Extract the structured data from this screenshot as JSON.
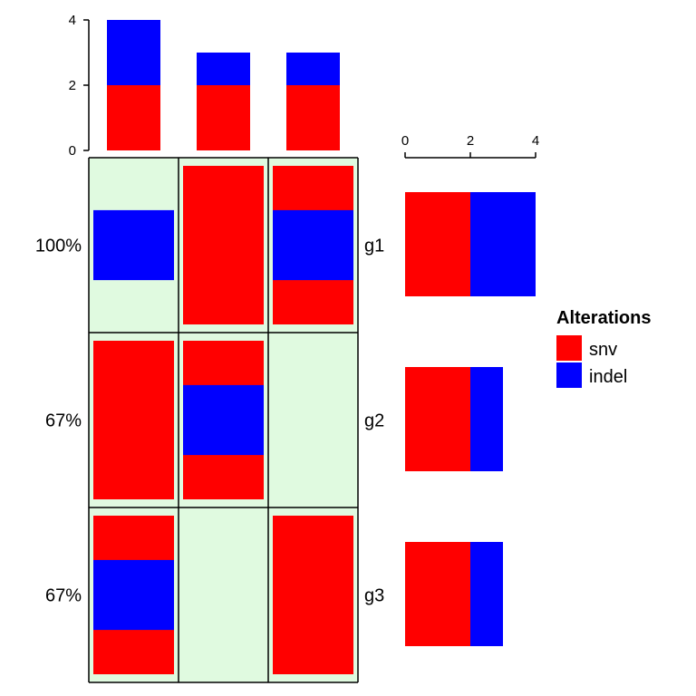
{
  "colors": {
    "snv": "#ff0000",
    "indel": "#0000ff",
    "background": "#e0fae0",
    "border": "#000000"
  },
  "chart_data": {
    "type": "oncoprint",
    "genes": [
      "g1",
      "g2",
      "g3"
    ],
    "percentages": [
      "100%",
      "67%",
      "67%"
    ],
    "samples": 3,
    "matrix": [
      [
        [
          "indel"
        ],
        [
          "snv"
        ],
        [
          "snv",
          "indel"
        ]
      ],
      [
        [
          "snv"
        ],
        [
          "snv",
          "indel"
        ],
        []
      ],
      [
        [
          "snv",
          "indel"
        ],
        [],
        [
          "snv"
        ]
      ]
    ],
    "top_barplot": {
      "ylim": [
        0,
        4
      ],
      "ticks": [
        "0",
        "2",
        "4"
      ],
      "series": [
        {
          "name": "snv",
          "values": [
            2,
            2,
            2
          ]
        },
        {
          "name": "indel",
          "values": [
            2,
            1,
            1
          ]
        }
      ]
    },
    "right_barplot": {
      "xlim": [
        0,
        4
      ],
      "ticks": [
        "0",
        "2",
        "4"
      ],
      "series": [
        {
          "name": "snv",
          "values": [
            2,
            2,
            2
          ]
        },
        {
          "name": "indel",
          "values": [
            2,
            1,
            1
          ]
        }
      ]
    },
    "legend": {
      "title": "Alterations",
      "placement": "right",
      "items": [
        {
          "key": "snv",
          "label": "snv"
        },
        {
          "key": "indel",
          "label": "indel"
        }
      ]
    }
  }
}
